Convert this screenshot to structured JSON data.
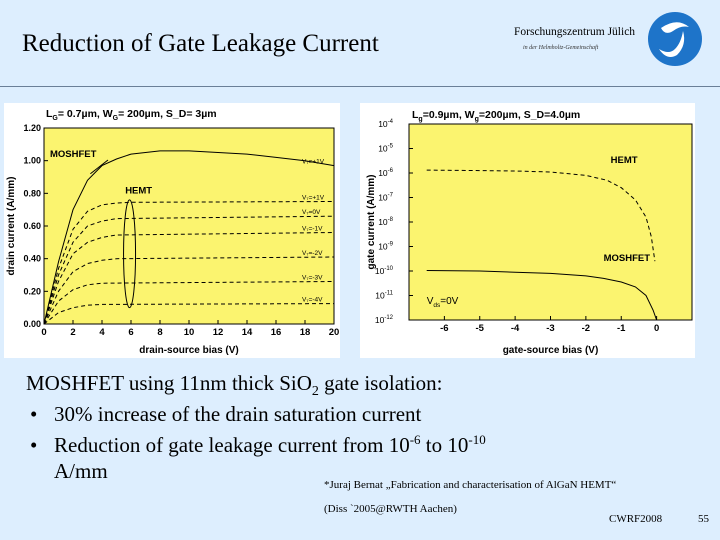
{
  "slide": {
    "title": "Reduction of Gate Leakage Current",
    "org_name": "Forschungszentrum Jülich",
    "org_sub": "in der Helmholtz-Gemeinschaft",
    "caption_a": "MOSHFET using 11nm thick Si",
    "caption_b": "O",
    "caption_c": "2",
    "caption_d": " gate isolation:",
    "bullet_char": "•",
    "bullet1": "30% increase of the drain saturation current",
    "bullet2_a": "Reduction of gate leakage current from 10",
    "bullet2_exp1": "-6",
    "bullet2_b": " to 10",
    "bullet2_exp2": "-10",
    "bullet2_cont": "A/mm",
    "ref_line1": "*Juraj Bernat „Fabrication and characterisation of AlGaN HEMT“",
    "ref_line2": "(Diss `2005@RWTH Aachen)",
    "footer_conf": "CWRF2008",
    "page_number": "55",
    "colors": {
      "background": "#ddeefe",
      "plot_bg": "#fbf46f"
    }
  },
  "chart_data": [
    {
      "type": "line",
      "title": "L₇= 0.7µm, W₇= 200µm, S_D= 3µm",
      "title_parts": [
        "L",
        "G",
        "= 0.7µm, W",
        "G",
        "= 200µm, S_D= 3µm"
      ],
      "xlabel": "drain-source bias (V)",
      "ylabel": "drain current (A/mm)",
      "xlim": [
        0,
        20
      ],
      "ylim": [
        0,
        1.2
      ],
      "x_ticks": [
        0,
        2,
        4,
        6,
        8,
        10,
        12,
        14,
        16,
        18,
        20
      ],
      "y_ticks": [
        "0.00",
        "0.20",
        "0.40",
        "0.60",
        "0.80",
        "1.00",
        "1.20"
      ],
      "annotations": [
        "MOSHFET",
        "HEMT"
      ],
      "series": [
        {
          "name": "MOSHFET",
          "label": "V₇=+1V",
          "style": "solid",
          "points": [
            [
              0,
              0
            ],
            [
              1,
              0.38
            ],
            [
              2,
              0.7
            ],
            [
              3,
              0.88
            ],
            [
              4,
              0.97
            ],
            [
              5,
              1.01
            ],
            [
              6,
              1.04
            ],
            [
              8,
              1.06
            ],
            [
              10,
              1.06
            ],
            [
              12,
              1.05
            ],
            [
              14,
              1.04
            ],
            [
              16,
              1.02
            ],
            [
              18,
              1.0
            ],
            [
              20,
              0.97
            ]
          ]
        },
        {
          "name": "HEMT",
          "label": "V₇=+1V",
          "style": "dashed",
          "points": [
            [
              0,
              0
            ],
            [
              1,
              0.34
            ],
            [
              2,
              0.58
            ],
            [
              3,
              0.69
            ],
            [
              4,
              0.73
            ],
            [
              5,
              0.74
            ],
            [
              6,
              0.745
            ],
            [
              20,
              0.75
            ]
          ]
        },
        {
          "name": "HEMT",
          "label": "V₇=0V",
          "style": "dashed",
          "points": [
            [
              0,
              0
            ],
            [
              1,
              0.3
            ],
            [
              2,
              0.5
            ],
            [
              3,
              0.6
            ],
            [
              4,
              0.63
            ],
            [
              5,
              0.645
            ],
            [
              20,
              0.66
            ]
          ]
        },
        {
          "name": "HEMT",
          "label": "V₇=-1V",
          "style": "dashed",
          "points": [
            [
              0,
              0
            ],
            [
              1,
              0.26
            ],
            [
              2,
              0.43
            ],
            [
              3,
              0.5
            ],
            [
              4,
              0.53
            ],
            [
              5,
              0.545
            ],
            [
              20,
              0.56
            ]
          ]
        },
        {
          "name": "HEMT",
          "label": "V₇=-2V",
          "style": "dashed",
          "points": [
            [
              0,
              0
            ],
            [
              1,
              0.2
            ],
            [
              2,
              0.32
            ],
            [
              3,
              0.37
            ],
            [
              4,
              0.39
            ],
            [
              5,
              0.4
            ],
            [
              20,
              0.41
            ]
          ]
        },
        {
          "name": "HEMT",
          "label": "V₇=-3V",
          "style": "dashed",
          "points": [
            [
              0,
              0
            ],
            [
              1,
              0.14
            ],
            [
              2,
              0.21
            ],
            [
              3,
              0.24
            ],
            [
              4,
              0.25
            ],
            [
              20,
              0.26
            ]
          ]
        },
        {
          "name": "HEMT",
          "label": "V₇=-4V",
          "style": "dashed",
          "points": [
            [
              0,
              0
            ],
            [
              1,
              0.07
            ],
            [
              2,
              0.1
            ],
            [
              3,
              0.115
            ],
            [
              4,
              0.12
            ],
            [
              20,
              0.125
            ]
          ]
        }
      ]
    },
    {
      "type": "line",
      "title": "L₇=0.9µm, W₇=200µm, S_D=4.0µm",
      "title_parts": [
        "L",
        "g",
        "=0.9µm, W",
        "g",
        "=200µm, S_D=4.0µm"
      ],
      "xlabel": "gate-source bias (V)",
      "ylabel": "gate current (A/mm)",
      "xlim": [
        -7,
        1
      ],
      "y_scale": "log",
      "ylim_exp": [
        -12,
        -4
      ],
      "x_ticks": [
        -6,
        -5,
        -4,
        -3,
        -2,
        -1,
        0
      ],
      "y_ticks": [
        "10-4",
        "10-5",
        "10-6",
        "10-7",
        "10-8",
        "10-9",
        "10-10",
        "10-11",
        "10-12"
      ],
      "annotations": [
        "HEMT",
        "MOSHFET",
        "V_ds=0V"
      ],
      "series": [
        {
          "name": "HEMT",
          "style": "dashed",
          "points": [
            [
              -6.5,
              -5.88
            ],
            [
              -5,
              -5.9
            ],
            [
              -4,
              -5.92
            ],
            [
              -3,
              -5.96
            ],
            [
              -2,
              -6.1
            ],
            [
              -1.4,
              -6.3
            ],
            [
              -1,
              -6.6
            ],
            [
              -0.6,
              -7.1
            ],
            [
              -0.3,
              -7.8
            ],
            [
              -0.15,
              -8.6
            ],
            [
              -0.05,
              -9.6
            ]
          ]
        },
        {
          "name": "MOSHFET",
          "style": "solid",
          "points": [
            [
              -6.5,
              -9.98
            ],
            [
              -5,
              -10.0
            ],
            [
              -4,
              -10.05
            ],
            [
              -3,
              -10.1
            ],
            [
              -2,
              -10.2
            ],
            [
              -1.5,
              -10.3
            ],
            [
              -1,
              -10.45
            ],
            [
              -0.6,
              -10.65
            ],
            [
              -0.3,
              -11.0
            ],
            [
              -0.1,
              -11.6
            ],
            [
              0,
              -12
            ]
          ]
        }
      ]
    }
  ]
}
